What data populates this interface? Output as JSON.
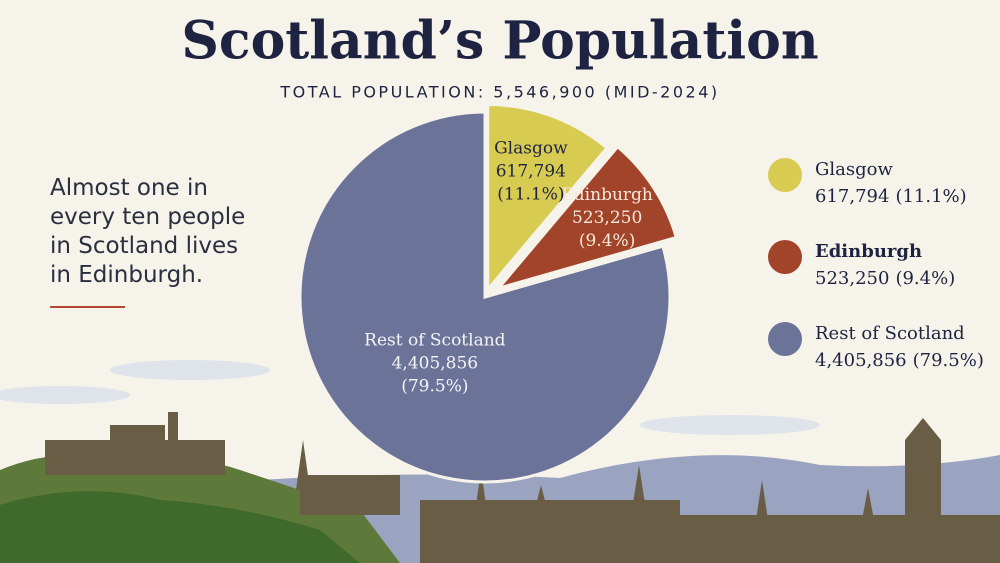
{
  "chart_data": {
    "type": "pie",
    "title": "Scotland’s Population",
    "subtitle": "TOTAL POPULATION: 5,546,900 (MID-2024)",
    "annotation": "Almost one in every ten people in Scotland lives in Edinburgh.",
    "categories": [
      "Glasgow",
      "Edinburgh",
      "Rest of Scotland"
    ],
    "values": [
      617794,
      523250,
      4405856
    ],
    "value_labels": [
      "617,794",
      "523,250",
      "4,405,856"
    ],
    "percentages": [
      11.1,
      9.4,
      79.5
    ],
    "percentage_labels": [
      "(11.1%)",
      "(9.4%)",
      "(79.5%)"
    ],
    "colors": [
      "#d8cb52",
      "#a2442a",
      "#6c7399"
    ],
    "legend": "right"
  }
}
